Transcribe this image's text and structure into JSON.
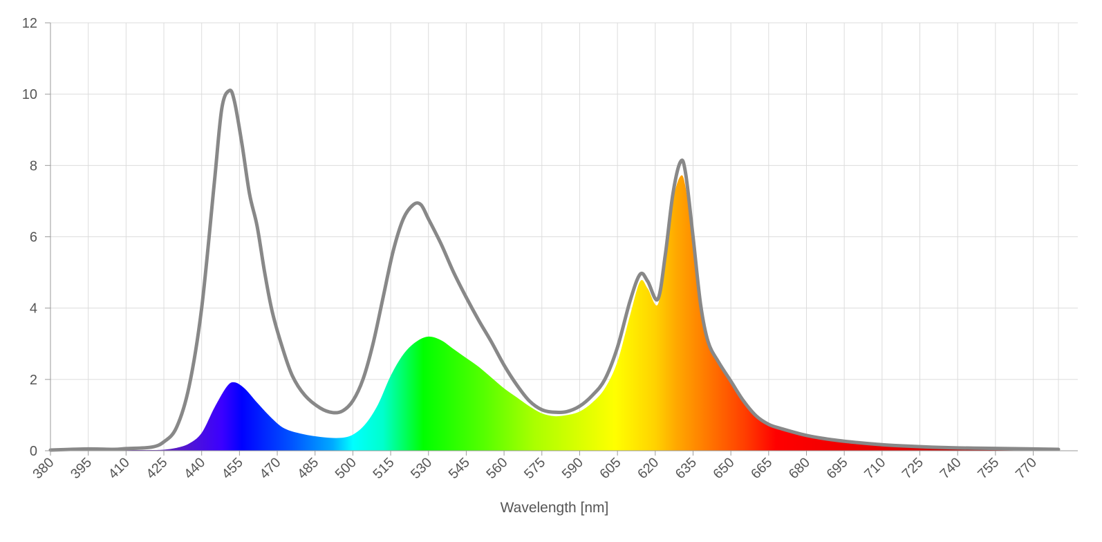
{
  "chart_data": {
    "type": "area",
    "title": "",
    "xlabel": "Wavelength [nm]",
    "ylabel": "",
    "xlim": [
      380,
      780
    ],
    "ylim": [
      0,
      12
    ],
    "x_ticks": [
      380,
      395,
      410,
      425,
      440,
      455,
      470,
      485,
      500,
      515,
      530,
      545,
      560,
      575,
      590,
      605,
      620,
      635,
      650,
      665,
      680,
      695,
      710,
      725,
      740,
      755,
      770
    ],
    "y_ticks": [
      0,
      2,
      4,
      6,
      8,
      10,
      12
    ],
    "grid": true,
    "legend": "none",
    "series": [
      {
        "style": "spectral-filled-area",
        "points": [
          [
            380,
            0.02
          ],
          [
            395,
            0.03
          ],
          [
            410,
            0.02
          ],
          [
            420,
            0.02
          ],
          [
            425,
            0.03
          ],
          [
            430,
            0.08
          ],
          [
            435,
            0.2
          ],
          [
            440,
            0.5
          ],
          [
            445,
            1.2
          ],
          [
            450,
            1.8
          ],
          [
            453,
            1.92
          ],
          [
            457,
            1.75
          ],
          [
            462,
            1.35
          ],
          [
            468,
            0.9
          ],
          [
            473,
            0.62
          ],
          [
            480,
            0.47
          ],
          [
            488,
            0.38
          ],
          [
            495,
            0.36
          ],
          [
            500,
            0.45
          ],
          [
            505,
            0.75
          ],
          [
            510,
            1.3
          ],
          [
            515,
            2.1
          ],
          [
            520,
            2.7
          ],
          [
            525,
            3.05
          ],
          [
            530,
            3.2
          ],
          [
            535,
            3.1
          ],
          [
            540,
            2.85
          ],
          [
            545,
            2.6
          ],
          [
            550,
            2.35
          ],
          [
            555,
            2.05
          ],
          [
            560,
            1.75
          ],
          [
            565,
            1.5
          ],
          [
            570,
            1.25
          ],
          [
            575,
            1.05
          ],
          [
            580,
            0.97
          ],
          [
            585,
            1.0
          ],
          [
            590,
            1.1
          ],
          [
            595,
            1.35
          ],
          [
            600,
            1.75
          ],
          [
            605,
            2.5
          ],
          [
            610,
            3.8
          ],
          [
            614,
            4.75
          ],
          [
            617,
            4.55
          ],
          [
            621,
            4.1
          ],
          [
            624,
            5.4
          ],
          [
            627,
            7.0
          ],
          [
            630,
            7.7
          ],
          [
            632,
            7.4
          ],
          [
            635,
            5.8
          ],
          [
            638,
            4.0
          ],
          [
            641,
            3.0
          ],
          [
            645,
            2.45
          ],
          [
            650,
            1.9
          ],
          [
            655,
            1.35
          ],
          [
            660,
            0.95
          ],
          [
            665,
            0.72
          ],
          [
            670,
            0.6
          ],
          [
            680,
            0.42
          ],
          [
            690,
            0.3
          ],
          [
            700,
            0.22
          ],
          [
            710,
            0.16
          ],
          [
            720,
            0.12
          ],
          [
            730,
            0.1
          ],
          [
            740,
            0.08
          ],
          [
            750,
            0.07
          ],
          [
            760,
            0.06
          ],
          [
            770,
            0.05
          ],
          [
            780,
            0.04
          ]
        ]
      },
      {
        "style": "gray-line",
        "color": "#888888",
        "points": [
          [
            380,
            0.02
          ],
          [
            395,
            0.05
          ],
          [
            405,
            0.04
          ],
          [
            410,
            0.06
          ],
          [
            420,
            0.1
          ],
          [
            425,
            0.25
          ],
          [
            430,
            0.65
          ],
          [
            435,
            1.8
          ],
          [
            440,
            4.0
          ],
          [
            445,
            7.5
          ],
          [
            448,
            9.6
          ],
          [
            451,
            10.1
          ],
          [
            453,
            9.8
          ],
          [
            456,
            8.6
          ],
          [
            459,
            7.2
          ],
          [
            462,
            6.3
          ],
          [
            465,
            5.0
          ],
          [
            468,
            3.9
          ],
          [
            472,
            2.9
          ],
          [
            476,
            2.1
          ],
          [
            481,
            1.55
          ],
          [
            487,
            1.2
          ],
          [
            492,
            1.07
          ],
          [
            496,
            1.12
          ],
          [
            500,
            1.4
          ],
          [
            504,
            2.0
          ],
          [
            508,
            3.0
          ],
          [
            512,
            4.3
          ],
          [
            516,
            5.6
          ],
          [
            520,
            6.5
          ],
          [
            524,
            6.9
          ],
          [
            527,
            6.9
          ],
          [
            530,
            6.5
          ],
          [
            535,
            5.8
          ],
          [
            540,
            5.0
          ],
          [
            545,
            4.3
          ],
          [
            550,
            3.65
          ],
          [
            555,
            3.05
          ],
          [
            560,
            2.4
          ],
          [
            565,
            1.85
          ],
          [
            570,
            1.4
          ],
          [
            575,
            1.15
          ],
          [
            580,
            1.08
          ],
          [
            585,
            1.1
          ],
          [
            590,
            1.25
          ],
          [
            595,
            1.55
          ],
          [
            600,
            2.0
          ],
          [
            605,
            2.9
          ],
          [
            610,
            4.2
          ],
          [
            614,
            4.95
          ],
          [
            617,
            4.75
          ],
          [
            621,
            4.25
          ],
          [
            624,
            5.5
          ],
          [
            627,
            7.2
          ],
          [
            630,
            8.1
          ],
          [
            632,
            7.8
          ],
          [
            635,
            6.0
          ],
          [
            638,
            4.1
          ],
          [
            641,
            3.05
          ],
          [
            645,
            2.5
          ],
          [
            650,
            1.95
          ],
          [
            655,
            1.4
          ],
          [
            660,
            0.98
          ],
          [
            665,
            0.74
          ],
          [
            670,
            0.62
          ],
          [
            680,
            0.43
          ],
          [
            690,
            0.31
          ],
          [
            700,
            0.23
          ],
          [
            710,
            0.17
          ],
          [
            720,
            0.13
          ],
          [
            730,
            0.1
          ],
          [
            740,
            0.08
          ],
          [
            750,
            0.07
          ],
          [
            760,
            0.06
          ],
          [
            770,
            0.05
          ],
          [
            780,
            0.04
          ]
        ]
      }
    ]
  }
}
